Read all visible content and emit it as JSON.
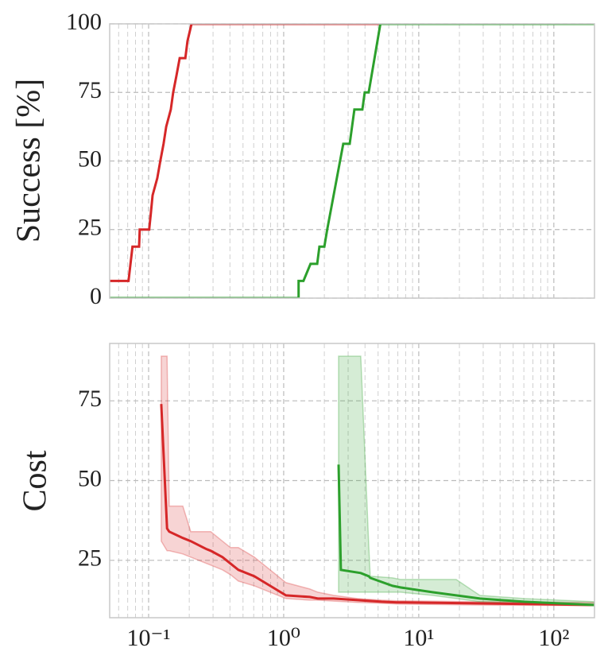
{
  "chart_data": [
    {
      "type": "line",
      "ylabel": "Success [%]",
      "log_x": true,
      "grid": true,
      "xlim": [
        0.0515,
        200
      ],
      "xticks": [
        0.1,
        1,
        10,
        100
      ],
      "xminorticks": [
        0.06,
        0.07,
        0.08,
        0.09,
        0.2,
        0.3,
        0.4,
        0.5,
        0.6,
        0.7,
        0.8,
        0.9,
        2,
        3,
        4,
        5,
        6,
        7,
        8,
        9,
        20,
        30,
        40,
        50,
        60,
        70,
        80,
        90
      ],
      "ylim": [
        0,
        100
      ],
      "yticks": [
        0,
        25,
        50,
        75,
        100
      ],
      "series": [
        {
          "color": "#d62728",
          "x": [
            0.0515,
            0.071,
            0.076,
            0.085,
            0.086,
            0.101,
            0.104,
            0.107,
            0.116,
            0.122,
            0.129,
            0.135,
            0.146,
            0.152,
            0.161,
            0.17,
            0.187,
            0.194,
            0.208,
            200
          ],
          "values": [
            6.25,
            6.25,
            18.75,
            18.75,
            25,
            25,
            31.25,
            37.5,
            43.75,
            50,
            56.25,
            62.5,
            68.75,
            75,
            81.25,
            87.5,
            87.5,
            93.75,
            100,
            100
          ]
        },
        {
          "color": "#2ca02c",
          "x": [
            0.0515,
            1.29,
            1.29,
            1.4,
            1.58,
            1.77,
            1.84,
            2.0,
            2.1,
            2.76,
            3.08,
            3.34,
            3.82,
            3.98,
            4.26,
            5.2,
            200
          ],
          "values": [
            0,
            0,
            6.25,
            6.25,
            12.5,
            12.5,
            18.75,
            18.75,
            25,
            56.25,
            56.25,
            68.75,
            68.75,
            75,
            75,
            100,
            100
          ]
        }
      ]
    },
    {
      "type": "band-line",
      "ylabel": "Cost",
      "log_x": true,
      "grid": true,
      "xlim": [
        0.0515,
        200
      ],
      "xticks": [
        {
          "value": 0.1,
          "label": "10⁻¹"
        },
        {
          "value": 1,
          "label": "10⁰"
        },
        {
          "value": 10,
          "label": "10¹"
        },
        {
          "value": 100,
          "label": "10²"
        }
      ],
      "xminorticks": [
        0.06,
        0.07,
        0.08,
        0.09,
        0.2,
        0.3,
        0.4,
        0.5,
        0.6,
        0.7,
        0.8,
        0.9,
        2,
        3,
        4,
        5,
        6,
        7,
        8,
        9,
        20,
        30,
        40,
        50,
        60,
        70,
        80,
        90
      ],
      "ylim": [
        7,
        93
      ],
      "yticks": [
        25,
        50,
        75
      ],
      "series": [
        {
          "color": "#d62728",
          "x": [
            0.124,
            0.137,
            0.142,
            0.179,
            0.205,
            0.269,
            0.288,
            0.352,
            0.403,
            0.462,
            0.606,
            0.794,
            1.04,
            1.56,
            1.79,
            2.34,
            3.52,
            5.3,
            6.94,
            26.5,
            199
          ],
          "values": [
            74,
            35,
            34,
            32,
            31,
            28.5,
            28,
            26,
            24,
            22,
            20,
            17,
            14,
            13.5,
            13,
            13,
            12.5,
            12,
            11.8,
            11.5,
            11
          ],
          "lower": [
            31,
            28,
            28,
            27,
            26,
            24,
            23.5,
            22,
            20.5,
            18.5,
            17,
            15,
            13,
            12.5,
            12.5,
            12.2,
            11.8,
            11.5,
            11.3,
            11,
            10.8
          ],
          "upper": [
            89,
            89,
            42,
            42,
            34,
            34,
            34,
            31,
            29,
            29,
            26,
            22,
            18,
            16,
            15,
            14,
            13,
            12.5,
            12.3,
            12,
            11.8
          ]
        },
        {
          "color": "#2ca02c",
          "x": [
            2.55,
            2.65,
            3.72,
            4.26,
            4.37,
            6.4,
            7.3,
            12.6,
            18.9,
            28.3,
            60,
            199
          ],
          "values": [
            55,
            22,
            21,
            20,
            19.5,
            17,
            16.5,
            15,
            14,
            13,
            12,
            11
          ],
          "lower": [
            15,
            15,
            15,
            15,
            15,
            15,
            15,
            14,
            13,
            12,
            11.5,
            10.8
          ],
          "upper": [
            89,
            89,
            89,
            30,
            20,
            19.5,
            19,
            19,
            19,
            14,
            13,
            12
          ]
        }
      ]
    }
  ]
}
